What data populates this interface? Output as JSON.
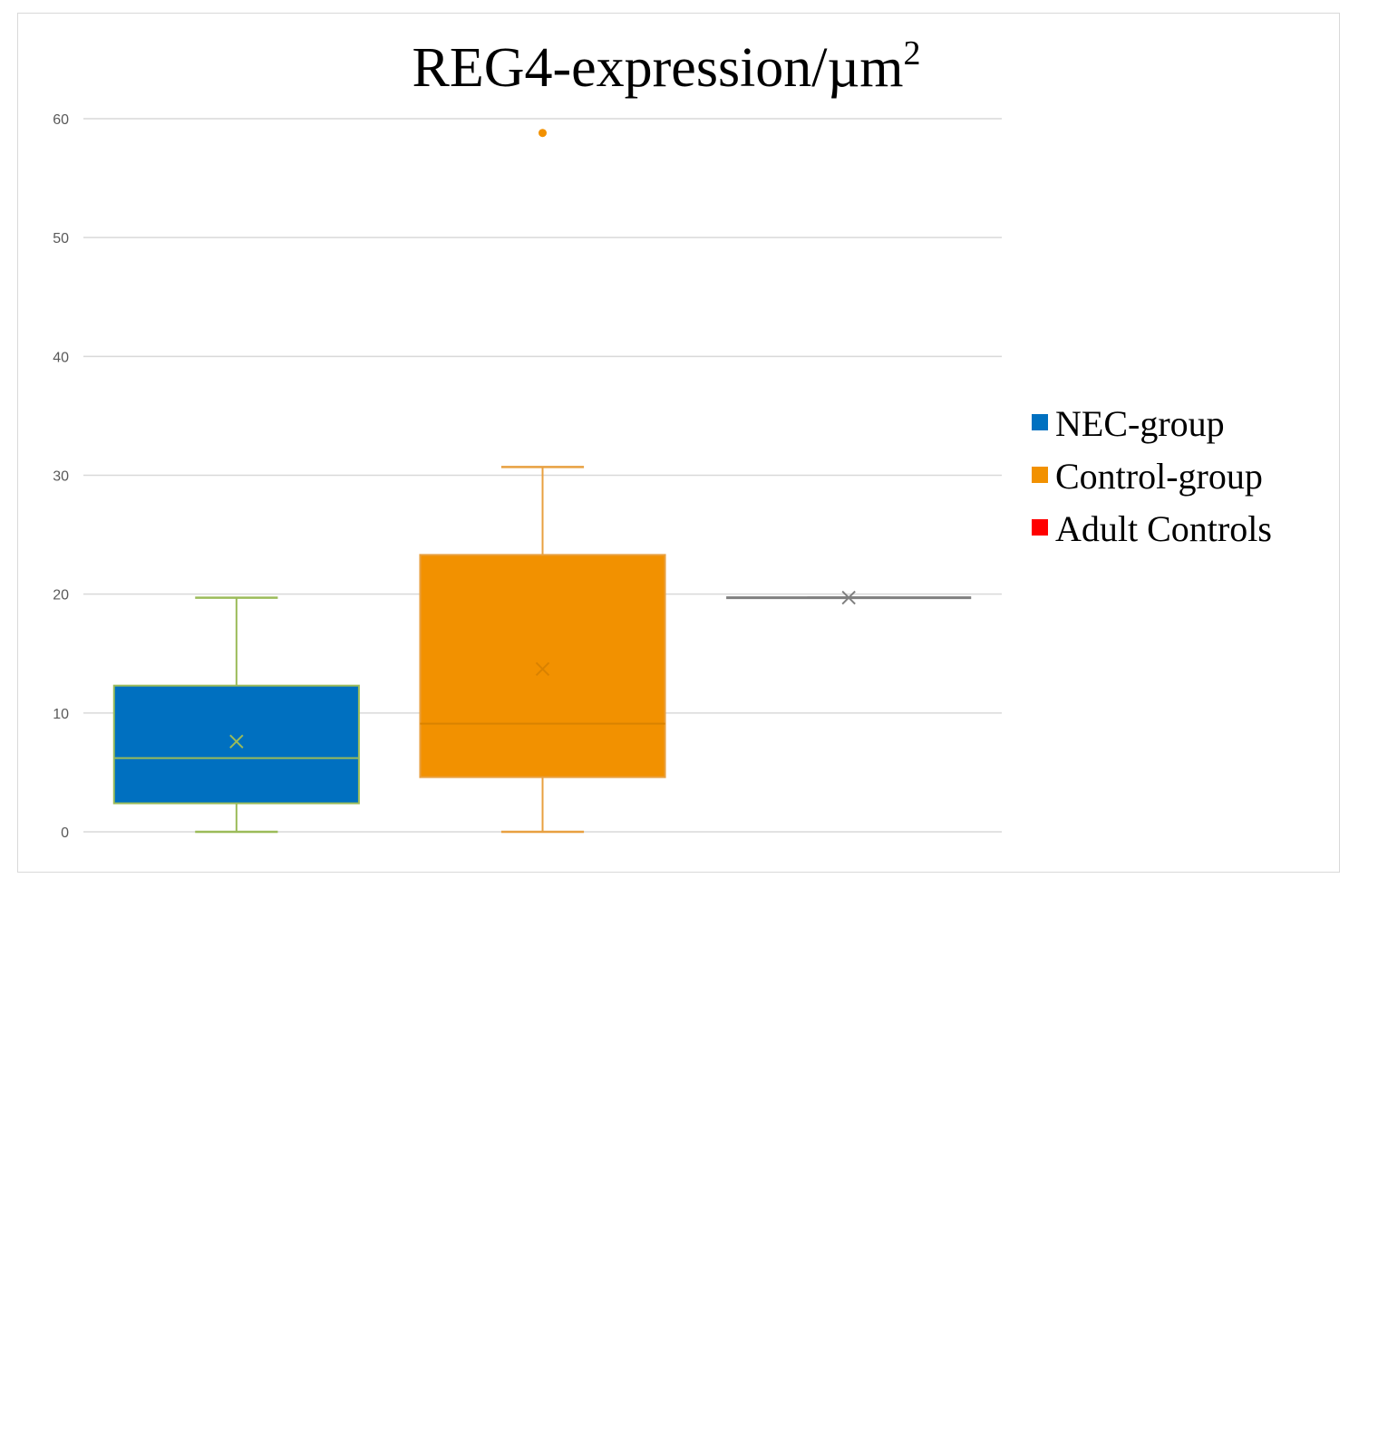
{
  "chart_data": {
    "type": "box",
    "title": "REG4-expression/µm",
    "title_superscript": "2",
    "xlabel": "",
    "ylabel": "",
    "ylim": [
      0,
      60
    ],
    "yticks": [
      0,
      10,
      20,
      30,
      40,
      50,
      60
    ],
    "grid": true,
    "legend_position": "right",
    "series": [
      {
        "name": "NEC-group",
        "color": "#0070C0",
        "line_color": "#9BBB59",
        "min": 0,
        "q1": 2.4,
        "median": 6.2,
        "q3": 12.3,
        "max": 19.7,
        "mean": 7.6,
        "outliers": []
      },
      {
        "name": "Control-group",
        "color": "#F29100",
        "line_color": "#E8A040",
        "min": 0,
        "q1": 4.6,
        "median": 9.1,
        "q3": 23.3,
        "max": 30.7,
        "mean": 13.7,
        "outliers": [
          58.8
        ]
      },
      {
        "name": "Adult Controls",
        "color": "#FF0000",
        "line_color": "#7F7F7F",
        "min": 19.7,
        "q1": 19.7,
        "median": 19.7,
        "q3": 19.7,
        "max": 19.7,
        "mean": 19.7,
        "outliers": []
      }
    ]
  }
}
